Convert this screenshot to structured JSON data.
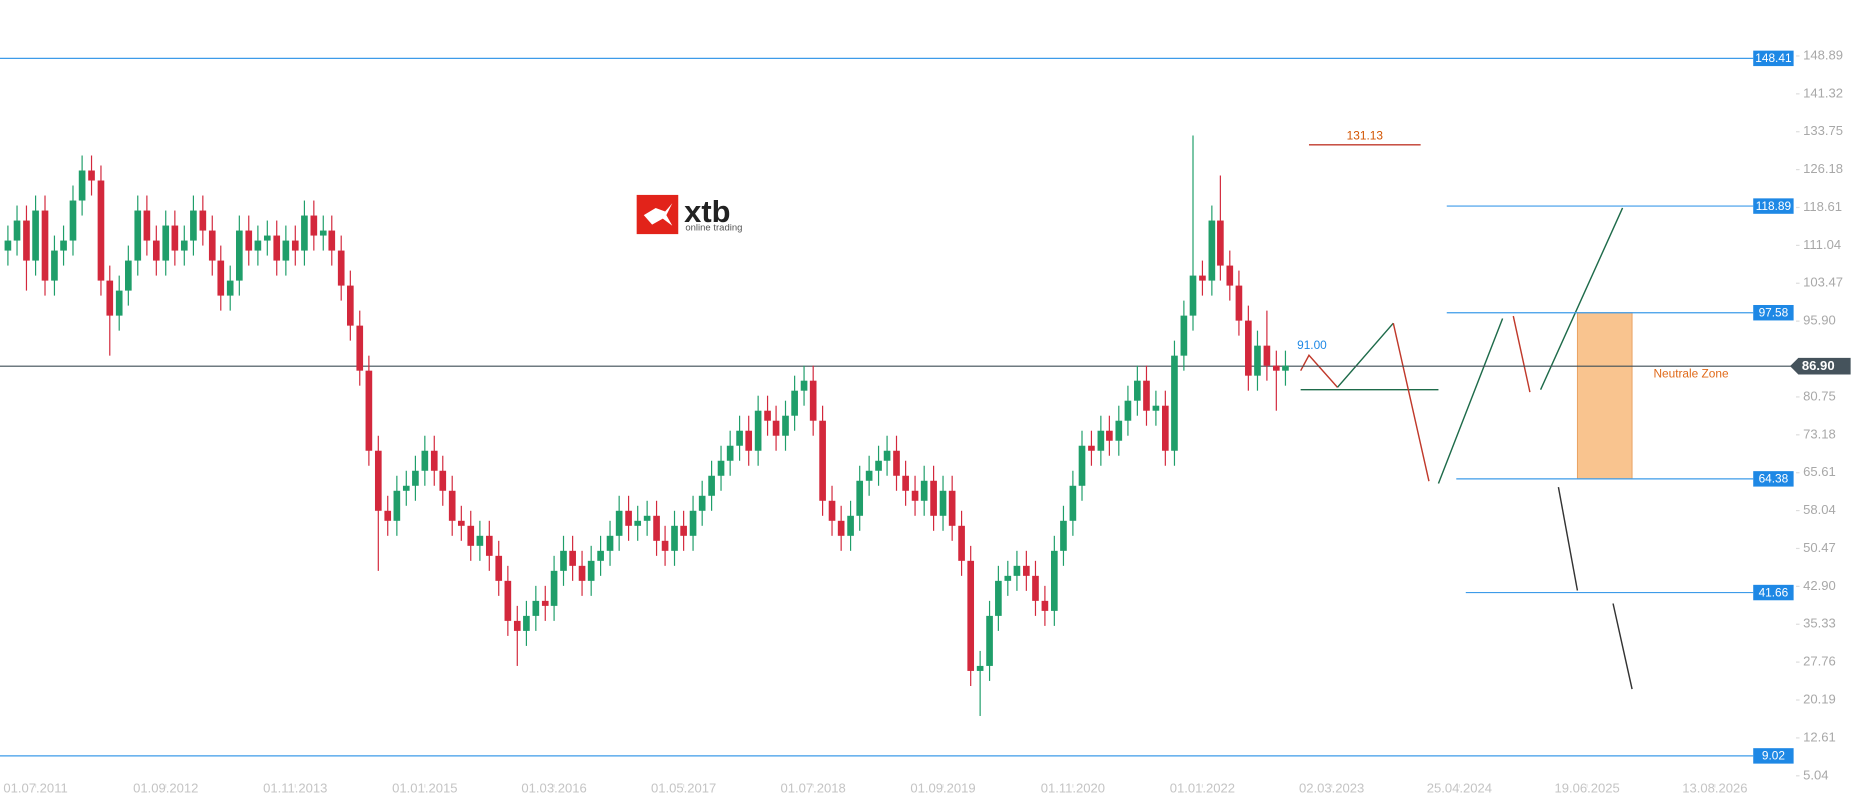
{
  "logo": {
    "name": "xtb",
    "tagline": "online trading"
  },
  "chart_data": {
    "type": "candlestick",
    "up_color": "#1f9e6a",
    "down_color": "#d3283c",
    "x": [
      "2011-04-01",
      "2011-05-01",
      "2011-06-01",
      "2011-07-01",
      "2011-08-01",
      "2011-09-01",
      "2011-10-01",
      "2011-11-01",
      "2011-12-01",
      "2012-01-01",
      "2012-02-01",
      "2012-03-01",
      "2012-04-01",
      "2012-05-01",
      "2012-06-01",
      "2012-07-01",
      "2012-08-01",
      "2012-09-01",
      "2012-10-01",
      "2012-11-01",
      "2012-12-01",
      "2013-01-01",
      "2013-02-01",
      "2013-03-01",
      "2013-04-01",
      "2013-05-01",
      "2013-06-01",
      "2013-07-01",
      "2013-08-01",
      "2013-09-01",
      "2013-10-01",
      "2013-11-01",
      "2013-12-01",
      "2014-01-01",
      "2014-02-01",
      "2014-03-01",
      "2014-04-01",
      "2014-05-01",
      "2014-06-01",
      "2014-07-01",
      "2014-08-01",
      "2014-09-01",
      "2014-10-01",
      "2014-11-01",
      "2014-12-01",
      "2015-01-01",
      "2015-02-01",
      "2015-03-01",
      "2015-04-01",
      "2015-05-01",
      "2015-06-01",
      "2015-07-01",
      "2015-08-01",
      "2015-09-01",
      "2015-10-01",
      "2015-11-01",
      "2015-12-01",
      "2016-01-01",
      "2016-02-01",
      "2016-03-01",
      "2016-04-01",
      "2016-05-01",
      "2016-06-01",
      "2016-07-01",
      "2016-08-01",
      "2016-09-01",
      "2016-10-01",
      "2016-11-01",
      "2016-12-01",
      "2017-01-01",
      "2017-02-01",
      "2017-03-01",
      "2017-04-01",
      "2017-05-01",
      "2017-06-01",
      "2017-07-01",
      "2017-08-01",
      "2017-09-01",
      "2017-10-01",
      "2017-11-01",
      "2017-12-01",
      "2018-01-01",
      "2018-02-01",
      "2018-03-01",
      "2018-04-01",
      "2018-05-01",
      "2018-06-01",
      "2018-07-01",
      "2018-08-01",
      "2018-09-01",
      "2018-10-01",
      "2018-11-01",
      "2018-12-01",
      "2019-01-01",
      "2019-02-01",
      "2019-03-01",
      "2019-04-01",
      "2019-05-01",
      "2019-06-01",
      "2019-07-01",
      "2019-08-01",
      "2019-09-01",
      "2019-10-01",
      "2019-11-01",
      "2019-12-01",
      "2020-01-01",
      "2020-02-01",
      "2020-03-01",
      "2020-04-01",
      "2020-05-01",
      "2020-06-01",
      "2020-07-01",
      "2020-08-01",
      "2020-09-01",
      "2020-10-01",
      "2020-11-01",
      "2020-12-01",
      "2021-01-01",
      "2021-02-01",
      "2021-03-01",
      "2021-04-01",
      "2021-05-01",
      "2021-06-01",
      "2021-07-01",
      "2021-08-01",
      "2021-09-01",
      "2021-10-01",
      "2021-11-01",
      "2021-12-01",
      "2022-01-01",
      "2022-02-01",
      "2022-03-01",
      "2022-04-01",
      "2022-05-01",
      "2022-06-01",
      "2022-07-01",
      "2022-08-01",
      "2022-09-01",
      "2022-10-01"
    ],
    "open": [
      110,
      112,
      116,
      108,
      118,
      104,
      110,
      112,
      120,
      126,
      124,
      104,
      97,
      102,
      108,
      118,
      112,
      108,
      115,
      110,
      112,
      118,
      114,
      108,
      101,
      104,
      114,
      110,
      112,
      113,
      108,
      112,
      110,
      117,
      113,
      114,
      110,
      103,
      95,
      86,
      70,
      58,
      56,
      62,
      63,
      66,
      70,
      66,
      62,
      56,
      55,
      51,
      53,
      49,
      44,
      36,
      34,
      37,
      40,
      39,
      46,
      50,
      47,
      44,
      48,
      50,
      53,
      58,
      55,
      56,
      57,
      52,
      50,
      55,
      53,
      58,
      61,
      65,
      68,
      71,
      74,
      70,
      78,
      76,
      73,
      77,
      82,
      84,
      76,
      60,
      56,
      53,
      57,
      64,
      66,
      68,
      70,
      65,
      62,
      60,
      64,
      57,
      62,
      55,
      48,
      26,
      27,
      37,
      44,
      45,
      47,
      45,
      40,
      38,
      50,
      56,
      63,
      71,
      70,
      74,
      72,
      76,
      80,
      84,
      78,
      79,
      70,
      89,
      97,
      105,
      104,
      116,
      107,
      103,
      96,
      85,
      91,
      87,
      86
    ],
    "high": [
      115,
      119,
      119,
      121,
      121,
      113,
      115,
      123,
      129,
      129,
      127,
      107,
      105,
      111,
      121,
      121,
      115,
      118,
      118,
      115,
      121,
      121,
      117,
      111,
      107,
      117,
      117,
      115,
      116,
      116,
      115,
      115,
      120,
      120,
      117,
      117,
      113,
      106,
      98,
      89,
      73,
      61,
      65,
      66,
      69,
      73,
      73,
      69,
      65,
      59,
      58,
      56,
      56,
      52,
      47,
      39,
      40,
      43,
      43,
      49,
      53,
      53,
      50,
      51,
      53,
      56,
      61,
      61,
      59,
      60,
      60,
      55,
      58,
      58,
      61,
      64,
      68,
      71,
      74,
      77,
      77,
      81,
      81,
      79,
      80,
      85,
      87,
      87,
      79,
      63,
      59,
      60,
      67,
      69,
      71,
      73,
      73,
      68,
      65,
      67,
      67,
      65,
      65,
      58,
      51,
      30,
      40,
      47,
      48,
      50,
      50,
      48,
      43,
      53,
      59,
      66,
      74,
      74,
      77,
      77,
      79,
      83,
      87,
      87,
      82,
      82,
      92,
      100,
      133,
      108,
      119,
      125,
      110,
      106,
      99,
      94,
      98,
      90,
      90
    ],
    "low": [
      107,
      109,
      102,
      105,
      101,
      101,
      107,
      109,
      117,
      121,
      101,
      89,
      94,
      99,
      105,
      109,
      105,
      105,
      107,
      107,
      109,
      111,
      105,
      98,
      98,
      101,
      107,
      107,
      109,
      105,
      105,
      107,
      107,
      110,
      110,
      107,
      100,
      92,
      83,
      67,
      46,
      53,
      53,
      59,
      60,
      63,
      63,
      59,
      53,
      52,
      48,
      48,
      46,
      41,
      33,
      27,
      31,
      34,
      36,
      36,
      43,
      44,
      41,
      41,
      45,
      47,
      50,
      52,
      52,
      53,
      49,
      47,
      47,
      50,
      50,
      55,
      58,
      62,
      65,
      68,
      67,
      67,
      73,
      70,
      70,
      74,
      79,
      73,
      57,
      53,
      50,
      50,
      54,
      61,
      63,
      65,
      62,
      59,
      57,
      57,
      54,
      54,
      52,
      45,
      23,
      17,
      24,
      34,
      41,
      42,
      42,
      37,
      35,
      35,
      47,
      53,
      60,
      67,
      67,
      69,
      69,
      73,
      77,
      75,
      75,
      67,
      67,
      86,
      94,
      101,
      101,
      104,
      100,
      93,
      82,
      82,
      84,
      78,
      83
    ],
    "close": [
      112,
      116,
      108,
      118,
      104,
      110,
      112,
      120,
      126,
      124,
      104,
      97,
      102,
      108,
      118,
      112,
      108,
      115,
      110,
      112,
      118,
      114,
      108,
      101,
      104,
      114,
      110,
      112,
      113,
      108,
      112,
      110,
      117,
      113,
      114,
      110,
      103,
      95,
      86,
      70,
      58,
      56,
      62,
      63,
      66,
      70,
      66,
      62,
      56,
      55,
      51,
      53,
      49,
      44,
      36,
      34,
      37,
      40,
      39,
      46,
      50,
      47,
      44,
      48,
      50,
      53,
      58,
      55,
      56,
      57,
      52,
      50,
      55,
      53,
      58,
      61,
      65,
      68,
      71,
      74,
      70,
      78,
      76,
      73,
      77,
      82,
      84,
      76,
      60,
      56,
      53,
      57,
      64,
      66,
      68,
      70,
      65,
      62,
      60,
      64,
      57,
      62,
      55,
      48,
      26,
      27,
      37,
      44,
      45,
      47,
      45,
      40,
      38,
      50,
      56,
      63,
      71,
      70,
      74,
      72,
      76,
      80,
      84,
      78,
      79,
      70,
      89,
      97,
      105,
      104,
      116,
      107,
      103,
      96,
      85,
      91,
      87,
      86,
      87
    ],
    "xlim": [
      "2011-03-06",
      "2027-04-29"
    ],
    "xticks": [
      {
        "value": "2011-07-01",
        "label": "01.07.2011"
      },
      {
        "value": "2012-09-01",
        "label": "01.09.2012"
      },
      {
        "value": "2013-11-01",
        "label": "01.11.2013"
      },
      {
        "value": "2015-01-01",
        "label": "01.01.2015"
      },
      {
        "value": "2016-03-01",
        "label": "01.03.2016"
      },
      {
        "value": "2017-05-01",
        "label": "01.05.2017"
      },
      {
        "value": "2018-07-01",
        "label": "01.07.2018"
      },
      {
        "value": "2019-09-01",
        "label": "01.09.2019"
      },
      {
        "value": "2020-11-01",
        "label": "01.11.2020"
      },
      {
        "value": "2022-01-01",
        "label": "01.01.2022"
      },
      {
        "value": "2023-03-02",
        "label": "02.03.2023"
      },
      {
        "value": "2024-04-25",
        "label": "25.04.2024"
      },
      {
        "value": "2025-06-19",
        "label": "19.06.2025"
      },
      {
        "value": "2026-08-13",
        "label": "13.08.2026"
      }
    ],
    "ylim": [
      3.39,
      160.05
    ],
    "yticks": [
      148.89,
      141.32,
      133.75,
      126.18,
      118.61,
      111.04,
      103.47,
      {
        "value": 95.9,
        "label": "95.90"
      },
      80.75,
      73.18,
      65.61,
      58.04,
      50.47,
      {
        "value": 42.9,
        "label": "42.90"
      },
      35.33,
      27.76,
      20.19,
      12.61,
      5.04
    ],
    "levels": [
      148.41,
      118.89,
      97.58,
      64.38,
      41.66,
      9.02
    ],
    "level_color": "#1e88e5",
    "current_price": {
      "value": 86.9,
      "label": "86.90"
    },
    "target_high": 131.13,
    "target_mid": {
      "value": 91,
      "label": "91.00"
    },
    "zone_label": "Neutrale Zone",
    "zone_color": "#f9c48f"
  }
}
